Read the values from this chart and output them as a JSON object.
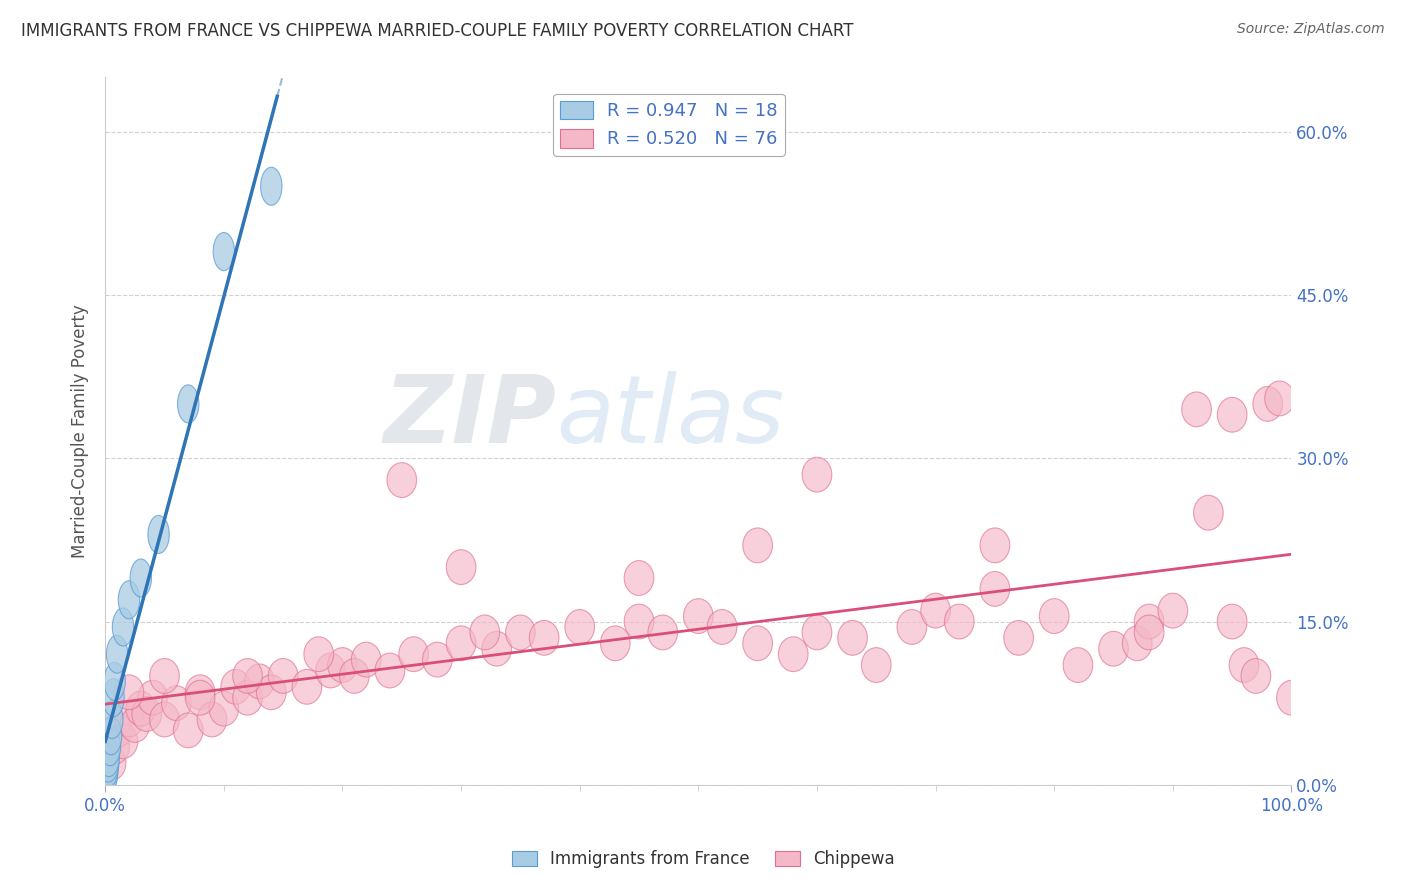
{
  "title": "IMMIGRANTS FROM FRANCE VS CHIPPEWA MARRIED-COUPLE FAMILY POVERTY CORRELATION CHART",
  "source": "Source: ZipAtlas.com",
  "ylabel": "Married-Couple Family Poverty",
  "watermark_zip": "ZIP",
  "watermark_atlas": "atlas",
  "legend_blue_r": "R = 0.947",
  "legend_blue_n": "N = 18",
  "legend_pink_r": "R = 0.520",
  "legend_pink_n": "N = 76",
  "blue_color": "#a8cce4",
  "blue_edge_color": "#5b9bd5",
  "blue_line_color": "#2e75b6",
  "pink_color": "#f4b8c8",
  "pink_edge_color": "#e07090",
  "pink_line_color": "#d94f7a",
  "blue_scatter_x": [
    0.1,
    0.15,
    0.2,
    0.25,
    0.3,
    0.4,
    0.5,
    0.6,
    0.7,
    0.8,
    1.0,
    1.5,
    2.0,
    3.0,
    4.5,
    7.0,
    10.0,
    14.0
  ],
  "blue_scatter_y": [
    0.8,
    1.0,
    1.5,
    2.0,
    2.5,
    3.5,
    4.5,
    6.0,
    8.0,
    9.5,
    12.0,
    14.5,
    17.0,
    19.0,
    23.0,
    35.0,
    49.0,
    55.0
  ],
  "pink_scatter_x": [
    0.5,
    0.8,
    1.0,
    1.5,
    2.0,
    2.5,
    3.0,
    3.5,
    4.0,
    5.0,
    6.0,
    7.0,
    8.0,
    9.0,
    10.0,
    11.0,
    12.0,
    13.0,
    14.0,
    15.0,
    17.0,
    19.0,
    20.0,
    21.0,
    22.0,
    24.0,
    26.0,
    28.0,
    30.0,
    33.0,
    35.0,
    37.0,
    40.0,
    43.0,
    45.0,
    47.0,
    50.0,
    52.0,
    55.0,
    58.0,
    60.0,
    63.0,
    65.0,
    68.0,
    70.0,
    72.0,
    75.0,
    77.0,
    80.0,
    82.0,
    85.0,
    87.0,
    88.0,
    90.0,
    92.0,
    93.0,
    95.0,
    96.0,
    97.0,
    98.0,
    99.0,
    100.0,
    2.0,
    5.0,
    8.0,
    12.0,
    18.0,
    25.0,
    32.0,
    45.0,
    60.0,
    75.0,
    88.0,
    95.0,
    30.0,
    55.0
  ],
  "pink_scatter_y": [
    2.0,
    3.5,
    5.0,
    4.0,
    6.0,
    5.5,
    7.0,
    6.5,
    8.0,
    6.0,
    7.5,
    5.0,
    8.5,
    6.0,
    7.0,
    9.0,
    8.0,
    9.5,
    8.5,
    10.0,
    9.0,
    10.5,
    11.0,
    10.0,
    11.5,
    10.5,
    12.0,
    11.5,
    13.0,
    12.5,
    14.0,
    13.5,
    14.5,
    13.0,
    15.0,
    14.0,
    15.5,
    14.5,
    13.0,
    12.0,
    14.0,
    13.5,
    11.0,
    14.5,
    16.0,
    15.0,
    18.0,
    13.5,
    15.5,
    11.0,
    12.5,
    13.0,
    15.0,
    16.0,
    34.5,
    25.0,
    34.0,
    11.0,
    10.0,
    35.0,
    35.5,
    8.0,
    8.5,
    10.0,
    8.0,
    10.0,
    12.0,
    28.0,
    14.0,
    19.0,
    28.5,
    22.0,
    14.0,
    15.0,
    20.0,
    22.0
  ],
  "xlim": [
    0,
    100
  ],
  "ylim": [
    0,
    65
  ],
  "ytick_vals": [
    0,
    15,
    30,
    45,
    60
  ],
  "ytick_labels": [
    "0.0%",
    "15.0%",
    "30.0%",
    "45.0%",
    "60.0%"
  ],
  "background_color": "#ffffff",
  "grid_color": "#cccccc",
  "right_yaxis_color": "#4472c4",
  "bottom_label_color": "#4472c4"
}
